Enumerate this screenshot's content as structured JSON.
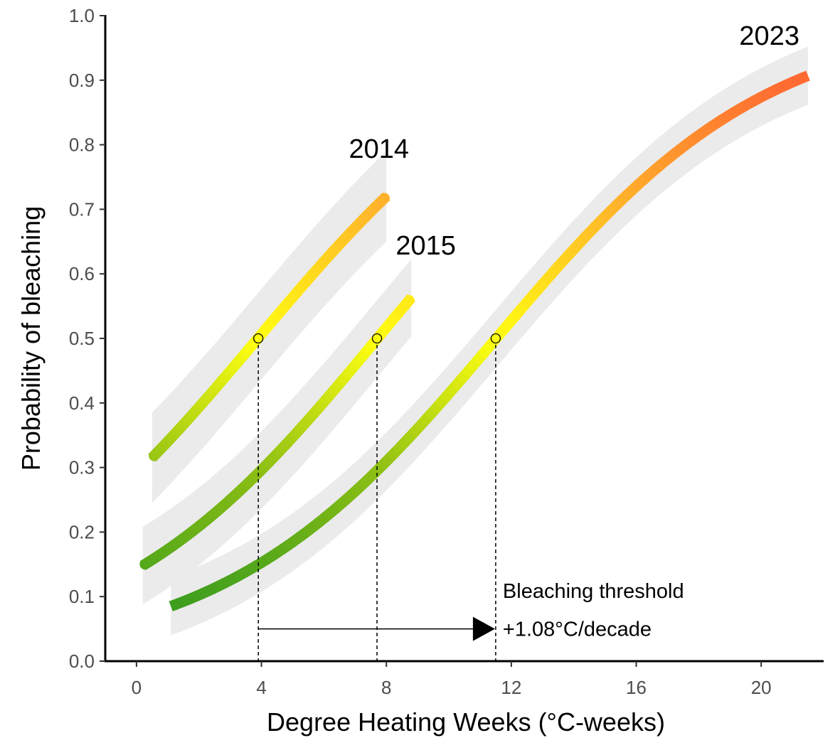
{
  "chart_data": {
    "type": "line",
    "xlabel": "Degree Heating Weeks (°C-weeks)",
    "ylabel": "Probability of bleaching",
    "xlim": [
      -1,
      22
    ],
    "ylim": [
      0,
      1
    ],
    "xticks": [
      0,
      4,
      8,
      12,
      16,
      20
    ],
    "yticks": [
      0.0,
      0.1,
      0.2,
      0.3,
      0.4,
      0.5,
      0.6,
      0.7,
      0.8,
      0.9,
      1.0
    ],
    "ytick_labels": [
      "0.0",
      "0.1",
      "0.2",
      "0.3",
      "0.4",
      "0.5",
      "0.6",
      "0.7",
      "0.8",
      "0.9",
      "1.0"
    ],
    "grid": false,
    "color_scale": {
      "description": "line colour encodes probability",
      "stops": [
        {
          "p": 0.08,
          "color": "#3a9c1e"
        },
        {
          "p": 0.3,
          "color": "#8dbf14"
        },
        {
          "p": 0.5,
          "color": "#ffff10"
        },
        {
          "p": 0.7,
          "color": "#ffb82a"
        },
        {
          "p": 0.9,
          "color": "#ff6a32"
        }
      ]
    },
    "band_color": "#ebebeb",
    "series": [
      {
        "name": "2014",
        "label": "2014",
        "x_range": [
          0.5,
          8.0
        ],
        "dhw50": 3.9,
        "p_at_start": 0.315,
        "p_at_end": 0.72,
        "band_halfwidth": 0.07,
        "label_pos": [
          6.8,
          0.78
        ]
      },
      {
        "name": "2015",
        "label": "2015",
        "x_range": [
          0.2,
          8.8
        ],
        "dhw50": 7.7,
        "p_at_start": 0.148,
        "p_at_end": 0.563,
        "band_halfwidth": 0.06,
        "label_pos": [
          8.3,
          0.63
        ]
      },
      {
        "name": "2023",
        "label": "2023",
        "x_range": [
          1.1,
          21.5
        ],
        "dhw50": 11.5,
        "p_at_start": 0.085,
        "p_at_end": 0.907,
        "band_halfwidth": 0.045,
        "label_pos": [
          19.3,
          0.955
        ]
      }
    ],
    "threshold_points": [
      {
        "year": "2014",
        "x": 3.9,
        "y": 0.5
      },
      {
        "year": "2015",
        "x": 7.7,
        "y": 0.5
      },
      {
        "year": "2023",
        "x": 11.5,
        "y": 0.5
      }
    ],
    "arrow": {
      "x_start": 3.9,
      "x_end": 11.5,
      "y": 0.05
    },
    "annotation": {
      "line1": "Bleaching threshold",
      "line2": "+1.08°C/decade"
    }
  }
}
